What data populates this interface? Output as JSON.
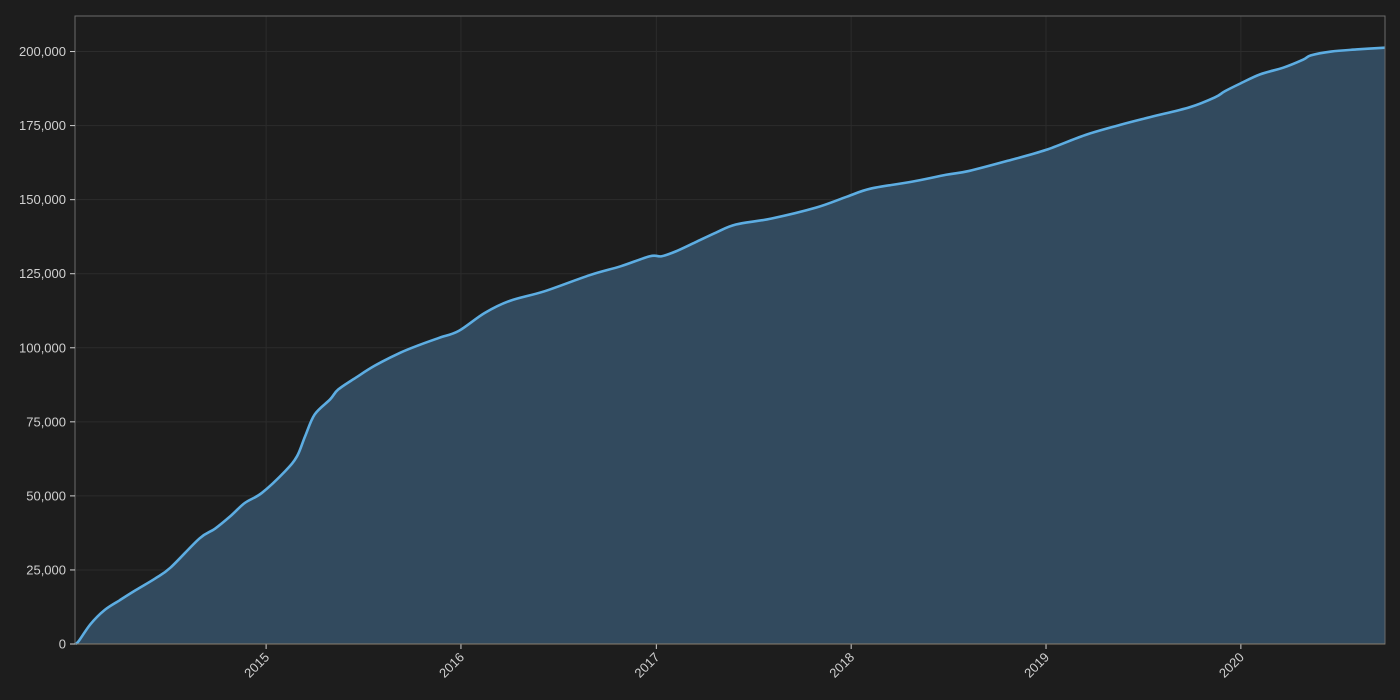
{
  "chart_data": {
    "type": "area",
    "title": "",
    "xlabel": "",
    "ylabel": "",
    "x_axis": {
      "type": "date",
      "range": [
        "2014-01-08",
        "2020-09-27"
      ],
      "tick_labels": [
        "2015",
        "2016",
        "2017",
        "2018",
        "2019",
        "2020"
      ]
    },
    "y_axis": {
      "range": [
        0,
        212000
      ],
      "ticks": [
        0,
        25000,
        50000,
        75000,
        100000,
        125000,
        150000,
        175000,
        200000
      ],
      "tick_labels": [
        "0",
        "25,000",
        "50,000",
        "75,000",
        "100,000",
        "125,000",
        "150,000",
        "175,000",
        "200,000"
      ]
    },
    "grid": true,
    "legend": "none",
    "colors": {
      "background": "#1d1d1d",
      "line": "#5dade2",
      "fill": "#324a5e",
      "grid": "#2c2c2c",
      "frame": "#6a6a6a"
    },
    "series": [
      {
        "x": [
          "2014-01-08",
          "2014-01-15",
          "2014-02-06",
          "2014-03-04",
          "2014-04-02",
          "2014-05-01",
          "2014-06-07",
          "2014-07-06",
          "2014-08-29",
          "2014-09-27",
          "2014-10-27",
          "2014-11-22",
          "2014-12-24",
          "2015-02-06",
          "2015-02-28",
          "2015-03-15",
          "2015-04-02",
          "2015-05-01",
          "2015-05-16",
          "2015-06-18",
          "2015-07-24",
          "2015-09-09",
          "2015-10-16",
          "2015-11-22",
          "2015-12-28",
          "2016-02-14",
          "2016-04-01",
          "2016-06-06",
          "2016-08-29",
          "2016-10-26",
          "2016-12-20",
          "2017-01-11",
          "2017-02-06",
          "2017-03-15",
          "2017-04-23",
          "2017-05-30",
          "2017-08-04",
          "2017-10-27",
          "2017-12-24",
          "2018-02-06",
          "2018-04-23",
          "2018-06-28",
          "2018-08-10",
          "2018-10-27",
          "2019-01-01",
          "2019-03-15",
          "2019-05-19",
          "2019-07-16",
          "2019-09-27",
          "2019-11-14",
          "2019-12-02",
          "2020-01-01",
          "2020-02-06",
          "2020-03-21",
          "2020-04-27",
          "2020-05-11",
          "2020-06-18",
          "2020-08-04",
          "2020-09-27"
        ],
        "y": [
          0,
          1000,
          6700,
          11400,
          14800,
          18100,
          22100,
          25800,
          35600,
          38900,
          43300,
          47600,
          51000,
          58400,
          63400,
          70100,
          77500,
          82600,
          85900,
          89900,
          94000,
          98300,
          101000,
          103400,
          105700,
          111700,
          115800,
          119100,
          124500,
          127500,
          130900,
          130900,
          132500,
          135600,
          138900,
          141600,
          143600,
          147300,
          151000,
          153700,
          156000,
          158400,
          159700,
          163400,
          166800,
          171800,
          175200,
          177900,
          181200,
          184600,
          186600,
          189300,
          192300,
          194600,
          197300,
          198700,
          200000,
          200700,
          201300
        ]
      }
    ]
  }
}
